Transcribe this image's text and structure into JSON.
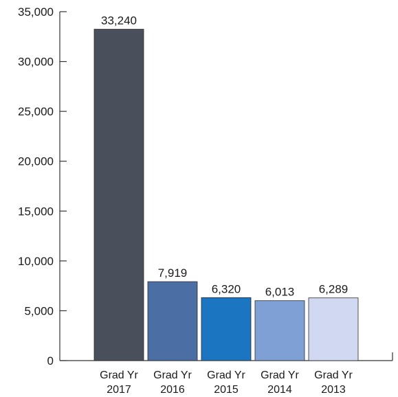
{
  "chart_data": {
    "type": "bar",
    "title": "",
    "xlabel": "",
    "ylabel": "",
    "ylim": [
      0,
      35000
    ],
    "yticks": [
      0,
      5000,
      10000,
      15000,
      20000,
      25000,
      30000,
      35000
    ],
    "ytick_labels": [
      "0",
      "5,000",
      "10,000",
      "15,000",
      "20,000",
      "25,000",
      "30,000",
      "35,000"
    ],
    "categories": [
      [
        "Grad Yr",
        "2017"
      ],
      [
        "Grad Yr",
        "2016"
      ],
      [
        "Grad Yr",
        "2015"
      ],
      [
        "Grad Yr",
        "2014"
      ],
      [
        "Grad Yr",
        "2013"
      ]
    ],
    "values": [
      33240,
      7919,
      6320,
      6013,
      6289
    ],
    "value_labels": [
      "33,240",
      "7,919",
      "6,320",
      "6,013",
      "6,289"
    ],
    "colors": [
      "#4a4f5c",
      "#4b6ea5",
      "#1c75c1",
      "#7fa0d4",
      "#d1d9f2"
    ],
    "grid": false,
    "legend": "none"
  }
}
